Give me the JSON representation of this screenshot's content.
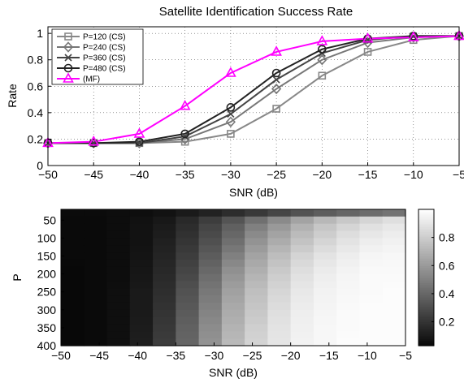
{
  "chart_data": [
    {
      "type": "line",
      "title": "Satellite Identification Success Rate",
      "xlabel": "SNR (dB)",
      "ylabel": "Rate",
      "xlim": [
        -50,
        -5
      ],
      "ylim": [
        0,
        1.05
      ],
      "xticks": [
        -50,
        -45,
        -40,
        -35,
        -30,
        -25,
        -20,
        -15,
        -10,
        -5
      ],
      "yticks": [
        0,
        0.2,
        0.4,
        0.6,
        0.8,
        1
      ],
      "grid": true,
      "legend_position": "top-left",
      "x": [
        -50,
        -45,
        -40,
        -35,
        -30,
        -25,
        -20,
        -15,
        -10,
        -5
      ],
      "series": [
        {
          "name": "P=120 (CS)",
          "marker": "square",
          "color": "#888888",
          "values": [
            0.17,
            0.17,
            0.17,
            0.18,
            0.24,
            0.43,
            0.68,
            0.86,
            0.95,
            0.98
          ]
        },
        {
          "name": "P=240 (CS)",
          "marker": "diamond",
          "color": "#777777",
          "values": [
            0.17,
            0.17,
            0.17,
            0.2,
            0.33,
            0.58,
            0.8,
            0.93,
            0.97,
            0.98
          ]
        },
        {
          "name": "P=360 (CS)",
          "marker": "x",
          "color": "#444444",
          "values": [
            0.17,
            0.17,
            0.17,
            0.22,
            0.39,
            0.65,
            0.85,
            0.95,
            0.98,
            0.98
          ]
        },
        {
          "name": "P=480 (CS)",
          "marker": "circle",
          "color": "#222222",
          "values": [
            0.17,
            0.17,
            0.18,
            0.24,
            0.44,
            0.7,
            0.88,
            0.96,
            0.98,
            0.98
          ]
        },
        {
          "name": "(MF)",
          "marker": "triangle",
          "color": "#ff00ff",
          "values": [
            0.17,
            0.18,
            0.24,
            0.45,
            0.7,
            0.86,
            0.94,
            0.96,
            0.97,
            0.98
          ]
        }
      ]
    },
    {
      "type": "heatmap",
      "xlabel": "SNR (dB)",
      "ylabel": "P",
      "xlim": [
        -50,
        -5
      ],
      "ylim": [
        400,
        20
      ],
      "xticks": [
        -50,
        -45,
        -40,
        -35,
        -30,
        -25,
        -20,
        -15,
        -10,
        -5
      ],
      "yticks": [
        50,
        100,
        150,
        200,
        250,
        300,
        350,
        400
      ],
      "colormap": "gray",
      "colorbar_ticks": [
        0.2,
        0.4,
        0.6,
        0.8
      ],
      "colorbar_range": [
        0.03,
        1
      ],
      "x_centers": [
        -49.5,
        -46.5,
        -43.5,
        -40.5,
        -37.5,
        -34.5,
        -31.5,
        -28.5,
        -25.5,
        -22.5,
        -19.5,
        -16.5,
        -13.5,
        -10.5,
        -7.5
      ],
      "profiles": [
        {
          "p": 20,
          "values": [
            0.05,
            0.05,
            0.05,
            0.05,
            0.05,
            0.05,
            0.05,
            0.05,
            0.05,
            0.05,
            0.05,
            0.05,
            0.05,
            0.05,
            0.05
          ]
        },
        {
          "p": 40,
          "values": [
            0.04,
            0.04,
            0.05,
            0.06,
            0.09,
            0.15,
            0.22,
            0.3,
            0.4,
            0.5,
            0.6,
            0.68,
            0.75,
            0.8,
            0.85
          ]
        },
        {
          "p": 60,
          "values": [
            0.04,
            0.04,
            0.05,
            0.07,
            0.1,
            0.17,
            0.26,
            0.36,
            0.48,
            0.58,
            0.68,
            0.76,
            0.82,
            0.87,
            0.9
          ]
        },
        {
          "p": 100,
          "values": [
            0.04,
            0.04,
            0.05,
            0.07,
            0.12,
            0.2,
            0.3,
            0.42,
            0.56,
            0.66,
            0.75,
            0.82,
            0.88,
            0.92,
            0.94
          ]
        },
        {
          "p": 150,
          "values": [
            0.04,
            0.04,
            0.05,
            0.08,
            0.14,
            0.24,
            0.36,
            0.5,
            0.64,
            0.74,
            0.83,
            0.89,
            0.93,
            0.96,
            0.97
          ]
        },
        {
          "p": 200,
          "values": [
            0.03,
            0.04,
            0.05,
            0.09,
            0.16,
            0.28,
            0.42,
            0.58,
            0.7,
            0.8,
            0.88,
            0.93,
            0.96,
            0.98,
            0.98
          ]
        },
        {
          "p": 250,
          "values": [
            0.03,
            0.04,
            0.06,
            0.1,
            0.18,
            0.32,
            0.47,
            0.63,
            0.75,
            0.84,
            0.91,
            0.95,
            0.97,
            0.98,
            0.99
          ]
        },
        {
          "p": 300,
          "values": [
            0.03,
            0.04,
            0.06,
            0.1,
            0.2,
            0.35,
            0.51,
            0.67,
            0.78,
            0.87,
            0.93,
            0.96,
            0.98,
            0.99,
            0.99
          ]
        },
        {
          "p": 350,
          "values": [
            0.03,
            0.04,
            0.06,
            0.11,
            0.22,
            0.38,
            0.55,
            0.7,
            0.81,
            0.89,
            0.94,
            0.97,
            0.98,
            0.99,
            0.99
          ]
        },
        {
          "p": 400,
          "values": [
            0.03,
            0.04,
            0.06,
            0.12,
            0.24,
            0.4,
            0.58,
            0.73,
            0.83,
            0.9,
            0.95,
            0.97,
            0.99,
            0.99,
            0.99
          ]
        }
      ]
    }
  ]
}
